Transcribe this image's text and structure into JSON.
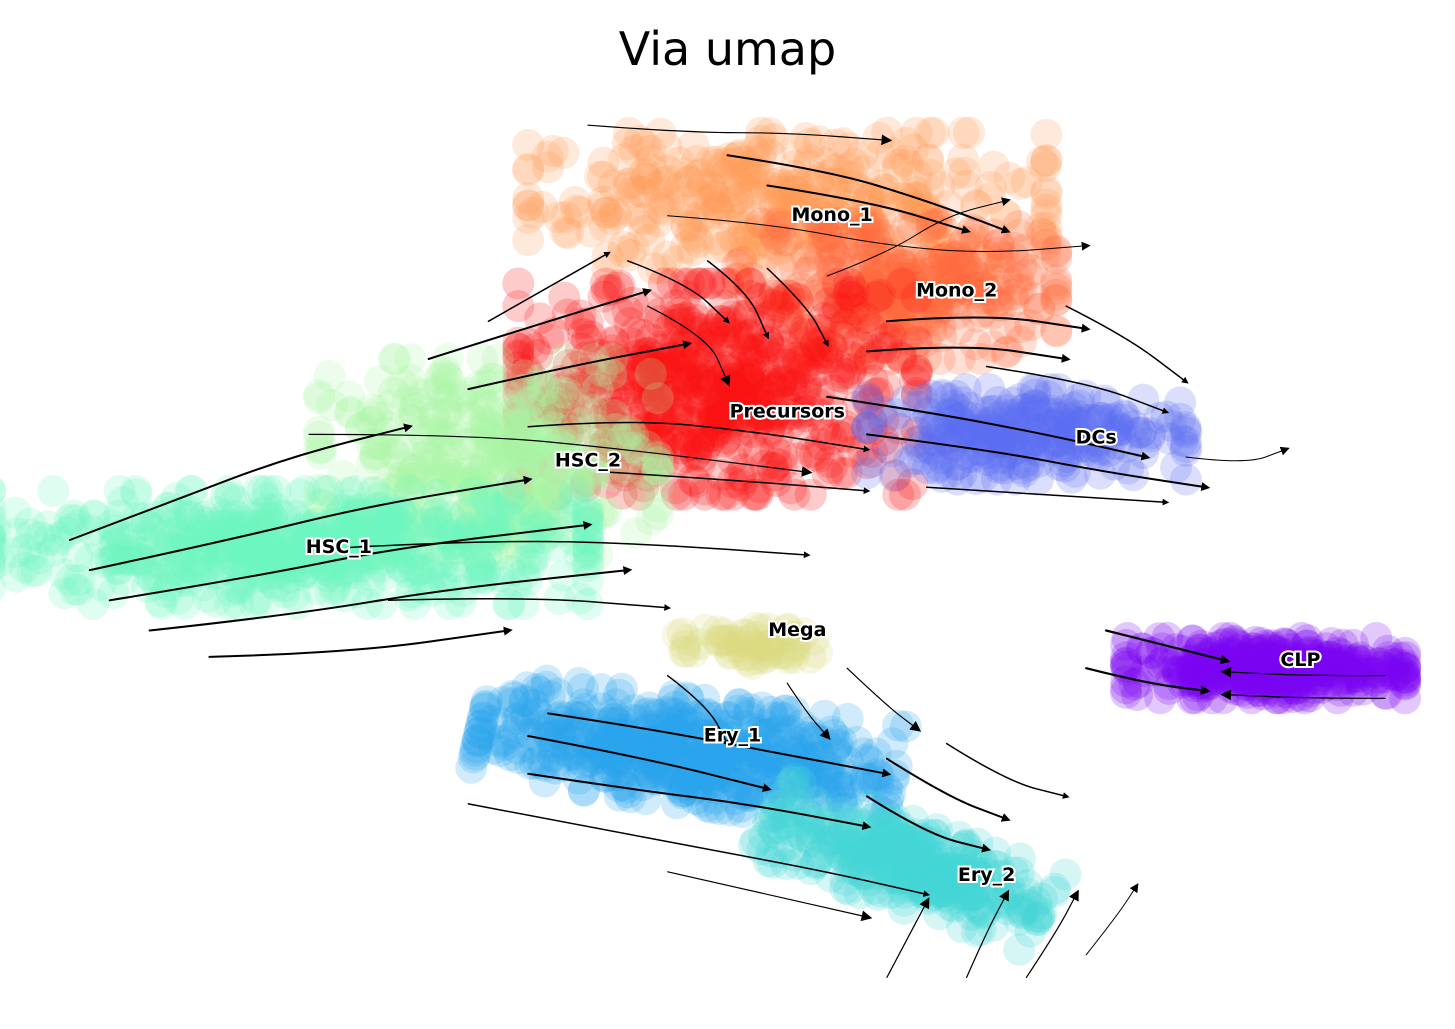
{
  "chart_data": {
    "type": "scatter",
    "title": "Via umap",
    "xlabel": "",
    "ylabel": "",
    "grid": false,
    "axes_visible": false,
    "overlay": "streamlines",
    "clusters": [
      {
        "name": "Mono_1",
        "color": "#ff9a55",
        "center": [
          7.6,
          8.0
        ],
        "spread": [
          2.6,
          0.9
        ],
        "angle": 0,
        "n": 380
      },
      {
        "name": "Mono_2",
        "color": "#ff6a3a",
        "center": [
          8.7,
          6.8
        ],
        "spread": [
          1.6,
          0.9
        ],
        "angle": 0,
        "n": 320
      },
      {
        "name": "Precursors",
        "color": "#fb1010",
        "center": [
          6.9,
          5.5
        ],
        "spread": [
          2.0,
          1.4
        ],
        "angle": 0,
        "n": 620
      },
      {
        "name": "DCs",
        "color": "#5b6cf2",
        "center": [
          10.0,
          4.9
        ],
        "spread": [
          1.6,
          0.6
        ],
        "angle": 0,
        "n": 280
      },
      {
        "name": "HSC_2",
        "color": "#a9f5a2",
        "center": [
          4.6,
          4.6
        ],
        "spread": [
          1.7,
          1.3
        ],
        "angle": 0,
        "n": 400
      },
      {
        "name": "HSC_1",
        "color": "#6ff5c1",
        "center": [
          2.6,
          3.4
        ],
        "spread": [
          3.0,
          0.75
        ],
        "angle": 0,
        "n": 600
      },
      {
        "name": "Mega",
        "color": "#d9d97f",
        "center": [
          7.2,
          2.1
        ],
        "spread": [
          0.7,
          0.25
        ],
        "angle": 0,
        "n": 60
      },
      {
        "name": "Ery_1",
        "color": "#2aa3ee",
        "center": [
          6.6,
          0.7
        ],
        "spread": [
          2.1,
          0.7
        ],
        "angle": -10,
        "n": 560
      },
      {
        "name": "Ery_2",
        "color": "#43d8d4",
        "center": [
          8.8,
          -0.8
        ],
        "spread": [
          1.5,
          0.55
        ],
        "angle": -25,
        "n": 360
      },
      {
        "name": "CLP",
        "color": "#7b06f2",
        "center": [
          12.4,
          1.8
        ],
        "spread": [
          1.4,
          0.4
        ],
        "angle": 0,
        "n": 380
      }
    ],
    "labels": [
      {
        "text": "Mono_1",
        "x": 8.05,
        "y": 7.8
      },
      {
        "text": "Mono_2",
        "x": 9.3,
        "y": 6.8
      },
      {
        "text": "Precursors",
        "x": 7.6,
        "y": 5.2
      },
      {
        "text": "DCs",
        "x": 10.7,
        "y": 4.85
      },
      {
        "text": "HSC_2",
        "x": 5.6,
        "y": 4.55
      },
      {
        "text": "HSC_1",
        "x": 3.1,
        "y": 3.4
      },
      {
        "text": "Mega",
        "x": 7.7,
        "y": 2.3
      },
      {
        "text": "Ery_1",
        "x": 7.05,
        "y": 0.9
      },
      {
        "text": "Ery_2",
        "x": 9.6,
        "y": -0.95
      },
      {
        "text": "CLP",
        "x": 12.75,
        "y": 1.9
      }
    ],
    "streamlines": [
      {
        "path": [
          [
            0.4,
            3.5
          ],
          [
            1.4,
            4.0
          ],
          [
            2.6,
            4.6
          ],
          [
            3.8,
            5.0
          ]
        ],
        "w": 2
      },
      {
        "path": [
          [
            0.6,
            3.1
          ],
          [
            2.0,
            3.5
          ],
          [
            3.4,
            3.95
          ],
          [
            5.0,
            4.3
          ]
        ],
        "w": 2
      },
      {
        "path": [
          [
            0.8,
            2.7
          ],
          [
            2.2,
            3.0
          ],
          [
            3.7,
            3.4
          ],
          [
            5.6,
            3.7
          ]
        ],
        "w": 2
      },
      {
        "path": [
          [
            1.2,
            2.3
          ],
          [
            2.6,
            2.5
          ],
          [
            4.2,
            2.85
          ],
          [
            6.0,
            3.1
          ]
        ],
        "w": 2
      },
      {
        "path": [
          [
            1.8,
            1.95
          ],
          [
            3.2,
            2.0
          ],
          [
            4.8,
            2.3
          ]
        ],
        "w": 2
      },
      {
        "path": [
          [
            3.2,
            3.4
          ],
          [
            4.6,
            3.5
          ],
          [
            6.2,
            3.45
          ],
          [
            7.8,
            3.3
          ]
        ],
        "w": 1.5
      },
      {
        "path": [
          [
            3.6,
            2.7
          ],
          [
            5.0,
            2.75
          ],
          [
            6.4,
            2.6
          ]
        ],
        "w": 1.5
      },
      {
        "path": [
          [
            2.8,
            4.9
          ],
          [
            4.4,
            4.9
          ],
          [
            6.0,
            4.7
          ],
          [
            7.8,
            4.4
          ]
        ],
        "w": 1.2
      },
      {
        "path": [
          [
            4.0,
            5.9
          ],
          [
            5.2,
            6.4
          ],
          [
            6.2,
            6.8
          ]
        ],
        "w": 2
      },
      {
        "path": [
          [
            4.4,
            5.5
          ],
          [
            5.4,
            5.8
          ],
          [
            6.6,
            6.1
          ]
        ],
        "w": 2
      },
      {
        "path": [
          [
            4.6,
            6.4
          ],
          [
            5.4,
            7.0
          ],
          [
            5.8,
            7.3
          ]
        ],
        "w": 1.5
      },
      {
        "path": [
          [
            5.0,
            5.0
          ],
          [
            6.0,
            5.1
          ],
          [
            7.2,
            4.95
          ],
          [
            8.4,
            4.7
          ]
        ],
        "w": 1.5
      },
      {
        "path": [
          [
            5.8,
            4.4
          ],
          [
            7.0,
            4.3
          ],
          [
            8.4,
            4.15
          ]
        ],
        "w": 1.5
      },
      {
        "path": [
          [
            6.0,
            7.2
          ],
          [
            6.6,
            6.9
          ],
          [
            7.0,
            6.4
          ]
        ],
        "w": 1.5
      },
      {
        "path": [
          [
            6.8,
            7.2
          ],
          [
            7.2,
            6.8
          ],
          [
            7.4,
            6.2
          ]
        ],
        "w": 1.5
      },
      {
        "path": [
          [
            7.4,
            7.1
          ],
          [
            7.8,
            6.6
          ],
          [
            8.0,
            6.1
          ]
        ],
        "w": 1.5
      },
      {
        "path": [
          [
            6.2,
            6.6
          ],
          [
            6.8,
            6.2
          ],
          [
            7.0,
            5.6
          ]
        ],
        "w": 1.2
      },
      {
        "path": [
          [
            5.6,
            9.0
          ],
          [
            6.6,
            8.9
          ],
          [
            7.6,
            8.9
          ],
          [
            8.6,
            8.8
          ]
        ],
        "w": 1.2
      },
      {
        "path": [
          [
            7.0,
            8.6
          ],
          [
            8.0,
            8.4
          ],
          [
            9.0,
            8.0
          ],
          [
            9.8,
            7.6
          ]
        ],
        "w": 2
      },
      {
        "path": [
          [
            7.4,
            8.2
          ],
          [
            8.4,
            8.0
          ],
          [
            9.4,
            7.6
          ]
        ],
        "w": 2
      },
      {
        "path": [
          [
            6.4,
            7.8
          ],
          [
            7.4,
            7.7
          ],
          [
            8.6,
            7.4
          ],
          [
            9.6,
            7.3
          ],
          [
            10.6,
            7.4
          ]
        ],
        "w": 1
      },
      {
        "path": [
          [
            8.0,
            7.0
          ],
          [
            8.6,
            7.3
          ],
          [
            9.2,
            7.8
          ],
          [
            9.8,
            8.0
          ]
        ],
        "w": 1
      },
      {
        "path": [
          [
            8.6,
            6.4
          ],
          [
            9.6,
            6.5
          ],
          [
            10.6,
            6.3
          ]
        ],
        "w": 2
      },
      {
        "path": [
          [
            8.4,
            6.0
          ],
          [
            9.4,
            6.1
          ],
          [
            10.4,
            5.9
          ]
        ],
        "w": 2
      },
      {
        "path": [
          [
            8.0,
            5.4
          ],
          [
            9.0,
            5.2
          ],
          [
            10.2,
            4.9
          ],
          [
            11.2,
            4.6
          ]
        ],
        "w": 2
      },
      {
        "path": [
          [
            8.4,
            4.9
          ],
          [
            9.6,
            4.7
          ],
          [
            10.8,
            4.4
          ],
          [
            11.8,
            4.2
          ]
        ],
        "w": 2
      },
      {
        "path": [
          [
            9.0,
            4.2
          ],
          [
            10.2,
            4.1
          ],
          [
            11.4,
            4.0
          ]
        ],
        "w": 1.5
      },
      {
        "path": [
          [
            10.4,
            6.6
          ],
          [
            11.0,
            6.2
          ],
          [
            11.6,
            5.6
          ]
        ],
        "w": 1.5
      },
      {
        "path": [
          [
            9.6,
            5.8
          ],
          [
            10.6,
            5.6
          ],
          [
            11.4,
            5.2
          ]
        ],
        "w": 1.5
      },
      {
        "path": [
          [
            11.6,
            4.6
          ],
          [
            12.2,
            4.5
          ],
          [
            12.6,
            4.7
          ]
        ],
        "w": 1
      },
      {
        "path": [
          [
            5.0,
            0.4
          ],
          [
            6.0,
            0.2
          ],
          [
            7.2,
            0.0
          ],
          [
            8.4,
            -0.3
          ]
        ],
        "w": 2
      },
      {
        "path": [
          [
            5.2,
            1.2
          ],
          [
            6.2,
            1.0
          ],
          [
            7.4,
            0.7
          ],
          [
            8.6,
            0.4
          ]
        ],
        "w": 2
      },
      {
        "path": [
          [
            5.0,
            0.9
          ],
          [
            6.2,
            0.6
          ],
          [
            7.4,
            0.2
          ]
        ],
        "w": 2
      },
      {
        "path": [
          [
            4.4,
            0.0
          ],
          [
            5.6,
            -0.3
          ],
          [
            6.8,
            -0.6
          ],
          [
            8.0,
            -0.9
          ],
          [
            9.0,
            -1.2
          ]
        ],
        "w": 1.5
      },
      {
        "path": [
          [
            6.4,
            -0.9
          ],
          [
            7.4,
            -1.2
          ],
          [
            8.4,
            -1.5
          ]
        ],
        "w": 1.2
      },
      {
        "path": [
          [
            8.6,
            0.6
          ],
          [
            9.2,
            0.1
          ],
          [
            9.8,
            -0.2
          ]
        ],
        "w": 2
      },
      {
        "path": [
          [
            8.4,
            0.1
          ],
          [
            9.0,
            -0.4
          ],
          [
            9.6,
            -0.6
          ]
        ],
        "w": 2
      },
      {
        "path": [
          [
            9.2,
            0.8
          ],
          [
            9.8,
            0.3
          ],
          [
            10.4,
            0.1
          ]
        ],
        "w": 1.5
      },
      {
        "path": [
          [
            6.4,
            1.7
          ],
          [
            6.8,
            1.3
          ],
          [
            7.0,
            0.8
          ]
        ],
        "w": 1.5
      },
      {
        "path": [
          [
            7.6,
            1.6
          ],
          [
            7.8,
            1.2
          ],
          [
            8.0,
            0.9
          ]
        ],
        "w": 1.2
      },
      {
        "path": [
          [
            8.2,
            1.8
          ],
          [
            8.6,
            1.3
          ],
          [
            8.9,
            1.0
          ]
        ],
        "w": 1.2
      },
      {
        "path": [
          [
            8.6,
            -2.3
          ],
          [
            8.8,
            -1.8
          ],
          [
            9.0,
            -1.3
          ]
        ],
        "w": 1.2
      },
      {
        "path": [
          [
            9.4,
            -2.3
          ],
          [
            9.6,
            -1.7
          ],
          [
            9.8,
            -1.2
          ]
        ],
        "w": 1.2
      },
      {
        "path": [
          [
            10.0,
            -2.3
          ],
          [
            10.3,
            -1.7
          ],
          [
            10.5,
            -1.2
          ]
        ],
        "w": 1.2
      },
      {
        "path": [
          [
            10.6,
            -2.0
          ],
          [
            10.9,
            -1.5
          ],
          [
            11.1,
            -1.1
          ]
        ],
        "w": 1
      },
      {
        "path": [
          [
            10.8,
            2.3
          ],
          [
            11.4,
            2.1
          ],
          [
            12.0,
            1.9
          ]
        ],
        "w": 2.2
      },
      {
        "path": [
          [
            10.6,
            1.8
          ],
          [
            11.2,
            1.6
          ],
          [
            11.8,
            1.5
          ]
        ],
        "w": 2.2
      },
      {
        "path": [
          [
            13.6,
            1.4
          ],
          [
            12.8,
            1.4
          ],
          [
            12.0,
            1.45
          ]
        ],
        "w": 1.2
      },
      {
        "path": [
          [
            13.6,
            1.7
          ],
          [
            12.8,
            1.7
          ],
          [
            12.0,
            1.75
          ]
        ],
        "w": 1.2
      }
    ],
    "xlim": [
      0,
      14
    ],
    "ylim": [
      -2.6,
      9.4
    ]
  }
}
